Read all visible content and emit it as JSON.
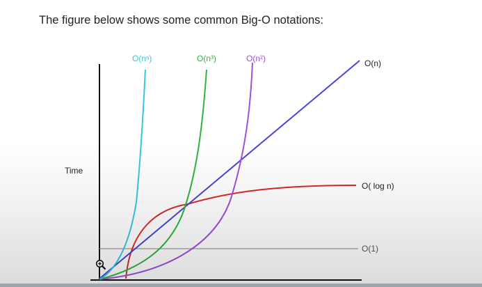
{
  "intro_text": "The figure below shows some common Big-O notations:",
  "y_axis_label": "Time",
  "curves": [
    {
      "id": "nn",
      "label": "O(nⁿ)",
      "color": "#35c8dc"
    },
    {
      "id": "n3",
      "label": "O(n³)",
      "color": "#2eb43c"
    },
    {
      "id": "n2",
      "label": "O(n²)",
      "color": "#9f4fe0"
    },
    {
      "id": "n",
      "label": "O(n)",
      "color": "#4646dc"
    },
    {
      "id": "logn",
      "label": "O( log n)",
      "color": "#d82a2a"
    },
    {
      "id": "one",
      "label": "O(1)",
      "color": "#9a9a9a"
    }
  ],
  "icons": {
    "cursor": "magnifier-cursor-icon"
  }
}
